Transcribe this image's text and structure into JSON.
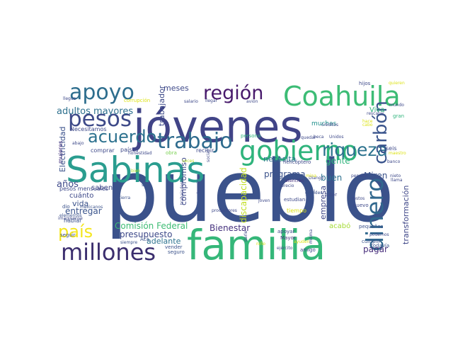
{
  "cloud": {
    "words": [
      {
        "text": "pueblo",
        "color": "#3b528b"
      },
      {
        "text": "jóvenes",
        "color": "#414487"
      },
      {
        "text": "familia",
        "color": "#35b779"
      },
      {
        "text": "Sabinas",
        "color": "#2a9d8f"
      },
      {
        "text": "Coahuila",
        "color": "#3cbc75"
      },
      {
        "text": "millones",
        "color": "#3b2e6e"
      },
      {
        "text": "gobierno",
        "color": "#2fb47c"
      },
      {
        "text": "pesos",
        "color": "#3e4a89"
      },
      {
        "text": "apoyo",
        "color": "#2e6e8e"
      },
      {
        "text": "trabajo",
        "color": "#2f6c8e"
      },
      {
        "text": "región",
        "color": "#481a6c"
      },
      {
        "text": "dinero",
        "color": "#31688e"
      },
      {
        "text": "país",
        "color": "#f4e61e"
      },
      {
        "text": "riqueza",
        "color": "#2c728e"
      },
      {
        "text": "acuerdo",
        "color": "#2c718e"
      },
      {
        "text": "carbón",
        "color": "#3a548c"
      },
      {
        "text": "adultos mayores",
        "color": "#2d708e"
      },
      {
        "text": "Comisión Federal",
        "color": "#3ebc74"
      },
      {
        "text": "discapacidad",
        "color": "#c2df23"
      },
      {
        "text": "años",
        "color": "#3e4989"
      },
      {
        "text": "entregar",
        "color": "#3a548c"
      },
      {
        "text": "Bienestar",
        "color": "#46327e"
      },
      {
        "text": "pagar",
        "color": "#472d7b"
      },
      {
        "text": "Miren",
        "color": "#3b528b"
      },
      {
        "text": "gente",
        "color": "#2fb47c"
      },
      {
        "text": "programa",
        "color": "#3b528b"
      },
      {
        "text": "necesita",
        "color": "#2d708e"
      },
      {
        "text": "buen",
        "color": "#2d708e"
      },
      {
        "text": "empresa",
        "color": "#3f4788"
      },
      {
        "text": "transformación",
        "color": "#3f4788"
      },
      {
        "text": "trabajador",
        "color": "#3e4a89"
      },
      {
        "text": "Electricidad",
        "color": "#3b528b"
      },
      {
        "text": "compromiso",
        "color": "#3e4989"
      },
      {
        "text": "presupuesto",
        "color": "#3e4989"
      },
      {
        "text": "adelante",
        "color": "#2c728e"
      },
      {
        "text": "vida",
        "color": "#3b528b"
      },
      {
        "text": "cuánto",
        "color": "#3e4989"
      },
      {
        "text": "saben",
        "color": "#3e4989"
      },
      {
        "text": "meses",
        "color": "#3e4989"
      },
      {
        "text": "Viva",
        "color": "#2fb47c"
      },
      {
        "text": "muchas",
        "color": "#21918c"
      },
      {
        "text": "acabó",
        "color": "#a5db36"
      },
      {
        "text": "mujeres",
        "color": "#46327e"
      },
      {
        "text": "tiempo",
        "color": "#dde318"
      },
      {
        "text": "seis",
        "color": "#3e4989"
      },
      {
        "text": "pesos mensuales",
        "color": "#3e4989"
      },
      {
        "text": "comprar",
        "color": "#3e4989"
      },
      {
        "text": "Necesitamos",
        "color": "#3e4989"
      },
      {
        "text": "hablar",
        "color": "#3b528b"
      },
      {
        "text": "dio",
        "color": "#3b528b"
      },
      {
        "text": "seguir",
        "color": "#3b528b"
      },
      {
        "text": "imaginense",
        "color": "#3e4989"
      },
      {
        "text": "elementos",
        "color": "#3b528b"
      },
      {
        "text": "mexicanos",
        "color": "#3b528b"
      },
      {
        "text": "recibir",
        "color": "#3e4989"
      },
      {
        "text": "países",
        "color": "#3e4989"
      },
      {
        "text": "honestidad",
        "color": "#3e4989"
      },
      {
        "text": "sólo",
        "color": "#3b528b"
      },
      {
        "text": "obra",
        "color": "#7ad151"
      },
      {
        "text": "veces",
        "color": "#b5de2b"
      },
      {
        "text": "bien",
        "color": "#b5de2b"
      },
      {
        "text": "tierra",
        "color": "#3b528b"
      },
      {
        "text": "siempre",
        "color": "#3b528b"
      },
      {
        "text": "vender",
        "color": "#3b528b"
      },
      {
        "text": "Acá",
        "color": "#3b528b"
      },
      {
        "text": "trabajadores",
        "color": "#3e4989"
      },
      {
        "text": "terminan",
        "color": "#3e4989"
      },
      {
        "text": "productores",
        "color": "#3e4989"
      },
      {
        "text": "social",
        "color": "#3e4989"
      },
      {
        "text": "darle",
        "color": "#3e4989"
      },
      {
        "text": "niño",
        "color": "#dde318"
      },
      {
        "text": "seguro",
        "color": "#3b528b"
      },
      {
        "text": "apoyar",
        "color": "#3e4989"
      },
      {
        "text": "Mayor",
        "color": "#46327e"
      },
      {
        "text": "amigo",
        "color": "#3e4989"
      },
      {
        "text": "ejército",
        "color": "#3e4989"
      },
      {
        "text": "ayuden",
        "color": "#dde318"
      },
      {
        "text": "misma",
        "color": "#3e4989"
      },
      {
        "text": "todavía",
        "color": "#3b528b"
      },
      {
        "text": "cumplir",
        "color": "#3b528b"
      },
      {
        "text": "podemos",
        "color": "#3e4989"
      },
      {
        "text": "pequeños",
        "color": "#3b528b"
      },
      {
        "text": "cada",
        "color": "#3e4989"
      },
      {
        "text": "joven",
        "color": "#3e4989"
      },
      {
        "text": "restos",
        "color": "#3e4989"
      },
      {
        "text": "tutor",
        "color": "#3e4989"
      },
      {
        "text": "nuevo",
        "color": "#3e4989"
      },
      {
        "text": "mal",
        "color": "#3b528b"
      },
      {
        "text": "estudian",
        "color": "#3e4989"
      },
      {
        "text": "grandes",
        "color": "#3b528b"
      },
      {
        "text": "atención",
        "color": "#46327e"
      },
      {
        "text": "precio",
        "color": "#3e4989"
      },
      {
        "text": "helicóptero",
        "color": "#3e4989"
      },
      {
        "text": "quedar",
        "color": "#3e4989"
      },
      {
        "text": "Unidos",
        "color": "#3e4989"
      },
      {
        "text": "beca",
        "color": "#3e4989"
      },
      {
        "text": "persona",
        "color": "#2fb47c"
      },
      {
        "text": "créditos",
        "color": "#3e4989"
      },
      {
        "text": "pensión",
        "color": "#3e4989"
      },
      {
        "text": "llama",
        "color": "#3e4989"
      },
      {
        "text": "banco",
        "color": "#3e4989"
      },
      {
        "text": "maestro",
        "color": "#dde318"
      },
      {
        "text": "rescatar",
        "color": "#3e4989"
      },
      {
        "text": "mundo",
        "color": "#3e4989"
      },
      {
        "text": "gran",
        "color": "#2fb47c"
      },
      {
        "text": "cabo",
        "color": "#dde318"
      },
      {
        "text": "hijos",
        "color": "#3e4989"
      },
      {
        "text": "quieren",
        "color": "#dde318"
      },
      {
        "text": "llegar",
        "color": "#3e4989"
      },
      {
        "text": "salario",
        "color": "#3e4989"
      },
      {
        "text": "avión",
        "color": "#3e4989"
      },
      {
        "text": "llegue",
        "color": "#3e4989"
      },
      {
        "text": "corrupción",
        "color": "#dde318"
      },
      {
        "text": "abajo",
        "color": "#3e4989"
      },
      {
        "text": "nieto",
        "color": "#3e4989"
      },
      {
        "text": "hace",
        "color": "#dde318"
      },
      {
        "text": "Diango",
        "color": "#3e4989"
      },
      {
        "text": "mina",
        "color": "#dde318"
      }
    ]
  }
}
